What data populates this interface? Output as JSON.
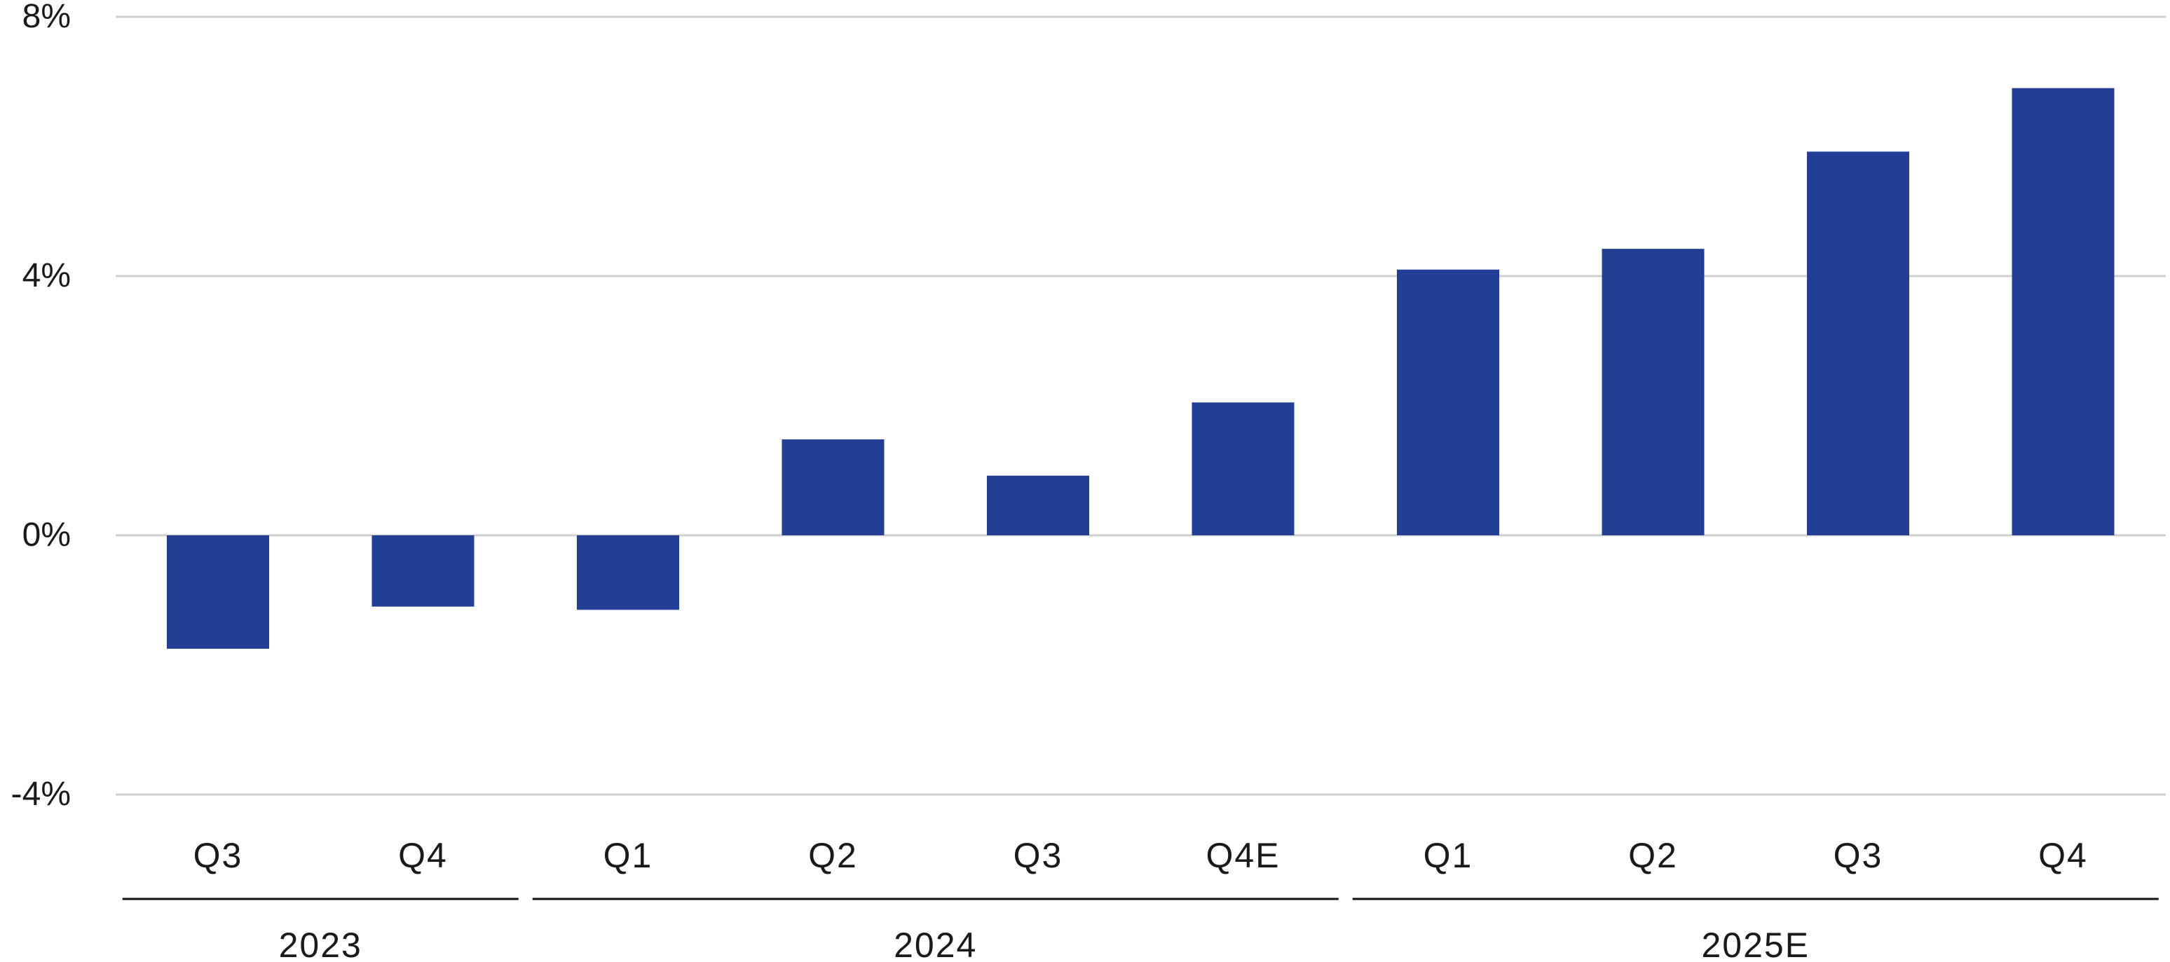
{
  "chart_data": {
    "type": "bar",
    "title": "",
    "xlabel": "",
    "ylabel": "",
    "ylim": [
      -4,
      8
    ],
    "yticks": [
      -4,
      0,
      4,
      8
    ],
    "ytick_labels": [
      "-4%",
      "0%",
      "4%",
      "8%"
    ],
    "grid": "horizontal",
    "categories": [
      "Q3",
      "Q4",
      "Q1",
      "Q2",
      "Q3",
      "Q4E",
      "Q1",
      "Q2",
      "Q3",
      "Q4"
    ],
    "values": [
      -1.75,
      -1.1,
      -1.15,
      1.48,
      0.92,
      2.05,
      4.1,
      4.42,
      5.92,
      6.9
    ],
    "groups": [
      {
        "label": "2023",
        "start": 0,
        "end": 1
      },
      {
        "label": "2024",
        "start": 2,
        "end": 5
      },
      {
        "label": "2025E",
        "start": 6,
        "end": 9
      }
    ],
    "bar_color": "#233f95",
    "grid_color": "#cfcfcf"
  }
}
